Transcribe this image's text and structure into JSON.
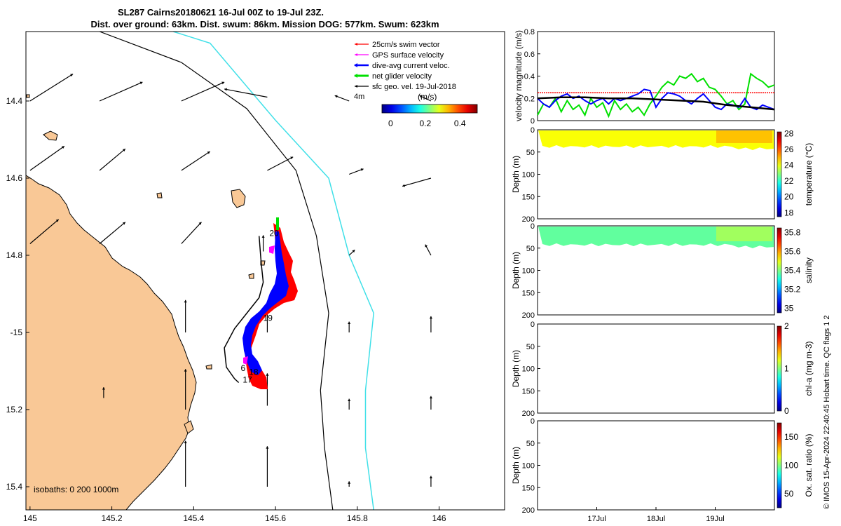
{
  "title": {
    "line1": "SL287 Cairns20180621 16-Jul 00Z to 19-Jul 23Z.",
    "line2": "Dist. over ground: 63km. Dist. swum: 86km. Mission DOG: 577km. Swum: 623km"
  },
  "colors": {
    "land": "#f9c896",
    "swim": "#ff0000",
    "gps": "#ff00ff",
    "dive_avg": "#0000ff",
    "net": "#00e000",
    "geo": "#000000",
    "isobath_200": "#000000",
    "isobath_1000": "#40e0e8"
  },
  "chart_data": [
    {
      "type": "map",
      "name": "glider-track-map",
      "xlim": [
        144.99,
        146.16
      ],
      "ylim": [
        -15.46,
        -14.22
      ],
      "x_ticks": [
        145,
        145.2,
        145.4,
        145.6,
        145.8,
        146
      ],
      "x_tick_labels": [
        "145",
        "145.2",
        "145.4",
        "145.6",
        "145.8",
        "146"
      ],
      "y_ticks": [
        -14.4,
        -14.6,
        -14.8,
        -15,
        -15.2,
        -15.4
      ],
      "y_tick_labels": [
        "14.4",
        "14.6",
        "14.8",
        "-15",
        "15.2",
        "15.4"
      ],
      "legend": {
        "placement": "top-right",
        "entries": [
          {
            "label": "25cm/s swim vector",
            "color": "#ff0000"
          },
          {
            "label": "GPS surface velocity",
            "color": "#ff00ff"
          },
          {
            "label": "dive-avg current veloc.",
            "color": "#0000ff"
          },
          {
            "label": "net glider velocity",
            "color": "#00e000"
          },
          {
            "label": "sfc geo. vel. 19-Jul-2018",
            "color": "#000000"
          }
        ],
        "colorbar_label": "(m/s)",
        "colorbar_ticks": [
          "0",
          "0.2",
          "0.4"
        ],
        "colorbar_range": [
          -0.05,
          0.5
        ],
        "scale_label": "4m"
      },
      "isobaths_label": "isobaths: 0   200  1000m",
      "isobath_200": [
        [
          145.17,
          -14.22
        ],
        [
          145.37,
          -14.3
        ],
        [
          145.53,
          -14.42
        ],
        [
          145.65,
          -14.58
        ],
        [
          145.7,
          -14.75
        ],
        [
          145.73,
          -14.95
        ],
        [
          145.71,
          -15.15
        ],
        [
          145.72,
          -15.3
        ],
        [
          145.74,
          -15.46
        ]
      ],
      "isobath_1000": [
        [
          145.35,
          -14.22
        ],
        [
          145.44,
          -14.25
        ],
        [
          145.6,
          -14.45
        ],
        [
          145.73,
          -14.6
        ],
        [
          145.78,
          -14.8
        ],
        [
          145.84,
          -14.95
        ],
        [
          145.82,
          -15.15
        ],
        [
          145.82,
          -15.3
        ],
        [
          145.84,
          -15.46
        ]
      ],
      "track": [
        [
          145.56,
          -14.75
        ],
        [
          145.565,
          -14.82
        ],
        [
          145.57,
          -14.87
        ],
        [
          145.56,
          -14.91
        ],
        [
          145.53,
          -14.95
        ],
        [
          145.5,
          -14.99
        ],
        [
          145.475,
          -15.04
        ],
        [
          145.48,
          -15.09
        ],
        [
          145.5,
          -15.12
        ],
        [
          145.51,
          -15.13
        ]
      ],
      "track_labels": [
        {
          "text": "20",
          "x": 145.585,
          "y": -14.75
        },
        {
          "text": "19",
          "x": 145.57,
          "y": -14.97
        },
        {
          "text": "6",
          "x": 145.515,
          "y": -15.1
        },
        {
          "text": "18",
          "x": 145.535,
          "y": -15.11
        },
        {
          "text": "17",
          "x": 145.52,
          "y": -15.13
        }
      ],
      "geo_vectors": [
        [
          145.0,
          -14.4,
          0.15,
          -0.1
        ],
        [
          145.17,
          -14.4,
          0.15,
          -0.07
        ],
        [
          145.37,
          -14.4,
          0.15,
          -0.07
        ],
        [
          145.58,
          -14.39,
          -0.15,
          -0.03
        ],
        [
          145.78,
          -14.4,
          -0.05,
          -0.02
        ],
        [
          145.98,
          -14.4,
          -0.04,
          -0.02
        ],
        [
          145.0,
          -14.58,
          0.12,
          -0.09
        ],
        [
          145.17,
          -14.58,
          0.09,
          -0.08
        ],
        [
          145.37,
          -14.58,
          0.1,
          -0.07
        ],
        [
          145.58,
          -14.58,
          0.09,
          -0.05
        ],
        [
          145.78,
          -14.59,
          0.05,
          -0.02
        ],
        [
          145.98,
          -14.6,
          -0.1,
          0.03
        ],
        [
          145.0,
          -14.77,
          0.1,
          -0.09
        ],
        [
          145.17,
          -14.77,
          0.09,
          -0.08
        ],
        [
          145.37,
          -14.77,
          0.07,
          -0.08
        ],
        [
          145.57,
          -14.79,
          0.0,
          -0.06
        ],
        [
          145.78,
          -14.8,
          0.02,
          -0.02
        ],
        [
          145.98,
          -14.8,
          -0.02,
          -0.04
        ],
        [
          145.38,
          -15.0,
          0.0,
          -0.12
        ],
        [
          145.58,
          -15.0,
          0.0,
          -0.08
        ],
        [
          145.78,
          -15.0,
          0.0,
          -0.04
        ],
        [
          145.98,
          -15.0,
          0.0,
          -0.06
        ],
        [
          145.18,
          -15.17,
          0.0,
          -0.04
        ],
        [
          145.38,
          -15.2,
          0.0,
          -0.15
        ],
        [
          145.58,
          -15.19,
          0.0,
          -0.12
        ],
        [
          145.78,
          -15.2,
          0.0,
          -0.04
        ],
        [
          145.98,
          -15.2,
          0.0,
          -0.05
        ],
        [
          145.38,
          -15.4,
          0.0,
          -0.17
        ],
        [
          145.58,
          -15.4,
          0.0,
          -0.15
        ],
        [
          145.78,
          -15.4,
          0.0,
          -0.02
        ],
        [
          145.98,
          -15.4,
          0.0,
          -0.04
        ]
      ]
    },
    {
      "type": "line",
      "name": "velocity-panel",
      "ylabel": "velocity magnitude (m/s)",
      "xlim": [
        0,
        4
      ],
      "ylim": [
        0,
        0.8
      ],
      "y_ticks": [
        0,
        0.2,
        0.4,
        0.6,
        0.8
      ],
      "y_tick_labels": [
        "0",
        "0.2",
        "0.4",
        "0.6",
        "0.8"
      ],
      "series": [
        {
          "name": "swim 25cm/s",
          "color": "#ff0000",
          "x": [
            0,
            4
          ],
          "values": [
            0.25,
            0.25
          ]
        },
        {
          "name": "net glider velocity",
          "color": "#00e000",
          "x": [
            0,
            0.1,
            0.2,
            0.3,
            0.4,
            0.5,
            0.6,
            0.7,
            0.8,
            0.9,
            1.0,
            1.1,
            1.2,
            1.3,
            1.4,
            1.5,
            1.6,
            1.7,
            1.8,
            1.9,
            2.0,
            2.1,
            2.2,
            2.3,
            2.4,
            2.5,
            2.6,
            2.7,
            2.8,
            2.9,
            3.0,
            3.1,
            3.2,
            3.3,
            3.4,
            3.5,
            3.6,
            3.7,
            3.8,
            3.9,
            4.0
          ],
          "values": [
            0.05,
            0.15,
            0.12,
            0.2,
            0.08,
            0.18,
            0.1,
            0.14,
            0.05,
            0.2,
            0.12,
            0.16,
            0.04,
            0.18,
            0.1,
            0.15,
            0.08,
            0.12,
            0.05,
            0.15,
            0.22,
            0.3,
            0.35,
            0.32,
            0.4,
            0.38,
            0.42,
            0.35,
            0.38,
            0.3,
            0.28,
            0.22,
            0.15,
            0.18,
            0.1,
            0.15,
            0.42,
            0.38,
            0.35,
            0.3,
            0.32
          ]
        },
        {
          "name": "dive-avg current veloc.",
          "color": "#0000ff",
          "x": [
            0,
            0.1,
            0.2,
            0.3,
            0.4,
            0.5,
            0.6,
            0.7,
            0.8,
            0.9,
            1.0,
            1.1,
            1.2,
            1.3,
            1.4,
            1.5,
            1.6,
            1.7,
            1.8,
            1.9,
            2.0,
            2.1,
            2.2,
            2.3,
            2.4,
            2.5,
            2.6,
            2.7,
            2.8,
            2.9,
            3.0,
            3.1,
            3.2,
            3.3,
            3.4,
            3.5,
            3.6,
            3.7,
            3.8,
            3.9,
            4.0
          ],
          "values": [
            0.2,
            0.15,
            0.12,
            0.18,
            0.22,
            0.24,
            0.2,
            0.22,
            0.18,
            0.15,
            0.18,
            0.2,
            0.15,
            0.2,
            0.18,
            0.2,
            0.22,
            0.24,
            0.28,
            0.27,
            0.12,
            0.2,
            0.25,
            0.24,
            0.22,
            0.18,
            0.15,
            0.2,
            0.24,
            0.18,
            0.12,
            0.1,
            0.15,
            0.14,
            0.12,
            0.2,
            0.12,
            0.1,
            0.14,
            0.12,
            0.1
          ]
        },
        {
          "name": "sfc geo. vel.",
          "color": "#000000",
          "x": [
            0,
            0.4,
            0.8,
            1.2,
            1.6,
            2.0,
            2.4,
            2.8,
            3.2,
            3.6,
            4.0
          ],
          "values": [
            0.2,
            0.21,
            0.21,
            0.2,
            0.2,
            0.19,
            0.18,
            0.17,
            0.14,
            0.12,
            0.1
          ]
        }
      ]
    },
    {
      "type": "heatmap",
      "name": "temperature-panel",
      "ylabel": "Depth (m)",
      "colorbar_label": "temperature (°C)",
      "colorbar_ticks": [
        "18",
        "20",
        "22",
        "24",
        "26",
        "28"
      ],
      "colorbar_range": [
        17.5,
        28.2
      ],
      "ylim": [
        0,
        200
      ],
      "y_ticks": [
        "0",
        "50",
        "100",
        "150",
        "200"
      ],
      "value_range_observed": [
        23.5,
        25.2
      ]
    },
    {
      "type": "heatmap",
      "name": "salinity-panel",
      "ylabel": "Depth (m)",
      "colorbar_label": "salinity",
      "colorbar_ticks": [
        "35",
        "35.2",
        "35.4",
        "35.6",
        "35.8"
      ],
      "colorbar_range": [
        34.95,
        35.85
      ],
      "ylim": [
        0,
        200
      ],
      "y_ticks": [
        "0",
        "50",
        "100",
        "150",
        "200"
      ],
      "value_range_observed": [
        35.3,
        35.45
      ]
    },
    {
      "type": "heatmap",
      "name": "chla-panel",
      "ylabel": "Depth (m)",
      "colorbar_label": "chl-a (mg m-3)",
      "colorbar_ticks": [
        "0",
        "1",
        "2"
      ],
      "colorbar_range": [
        0,
        2
      ],
      "ylim": [
        0,
        200
      ],
      "y_ticks": [
        "0",
        "50",
        "100",
        "150",
        "200"
      ]
    },
    {
      "type": "heatmap",
      "name": "oxygen-panel",
      "ylabel": "Depth (m)",
      "colorbar_label": "Ox. sat. ratio (%)",
      "colorbar_ticks": [
        "50",
        "100",
        "150"
      ],
      "colorbar_range": [
        25,
        175
      ],
      "ylim": [
        0,
        200
      ],
      "y_ticks": [
        "0",
        "50",
        "100",
        "150",
        "200"
      ],
      "x_tick_labels": [
        "17Jul",
        "18Jul",
        "19Jul"
      ]
    }
  ],
  "footer": {
    "credit": "© IMOS 15-Apr-2024 22:40:45 Hobart time. QC flags 1  2"
  }
}
